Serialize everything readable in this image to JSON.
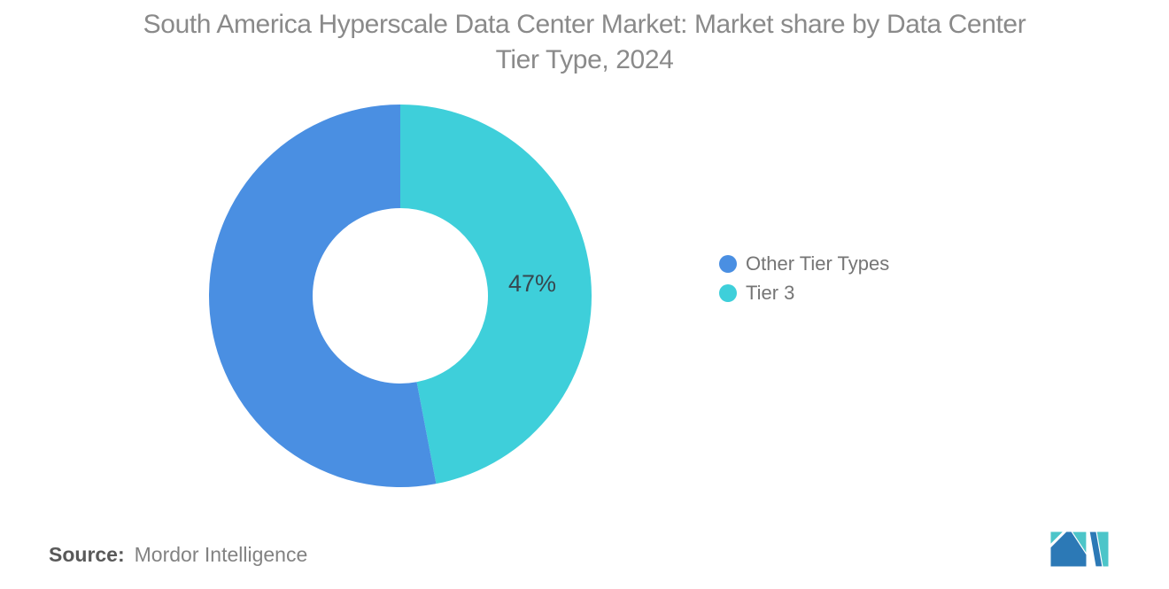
{
  "title_line1": "South America Hyperscale Data Center Market: Market share by Data Center",
  "title_line2": "Tier Type, 2024",
  "source": {
    "label": "Source:",
    "text": "Mordor Intelligence"
  },
  "logo": {
    "name": "Mordor Intelligence",
    "blue": "#2c79b6",
    "teal": "#4cc5c9"
  },
  "chart_data": {
    "type": "pie",
    "donut": true,
    "title": "South America Hyperscale Data Center Market: Market share by Data Center Tier Type, 2024",
    "segments": [
      {
        "label": "Tier 3",
        "value": 47,
        "color": "#3ecfda",
        "data_label": "47%"
      },
      {
        "label": "Other Tier Types",
        "value": 53,
        "color": "#4a8fe2",
        "data_label": ""
      }
    ],
    "legend": [
      {
        "label": "Other Tier Types",
        "color": "#4a8fe2"
      },
      {
        "label": "Tier 3",
        "color": "#3ecfda"
      }
    ],
    "start_angle_deg": 0,
    "direction": "clockwise",
    "outer_radius_px": 216,
    "inner_radius_px": 99,
    "data_label_color": "#37474f",
    "data_label_font_px": 27,
    "legend_position": "right",
    "background": "#ffffff"
  }
}
